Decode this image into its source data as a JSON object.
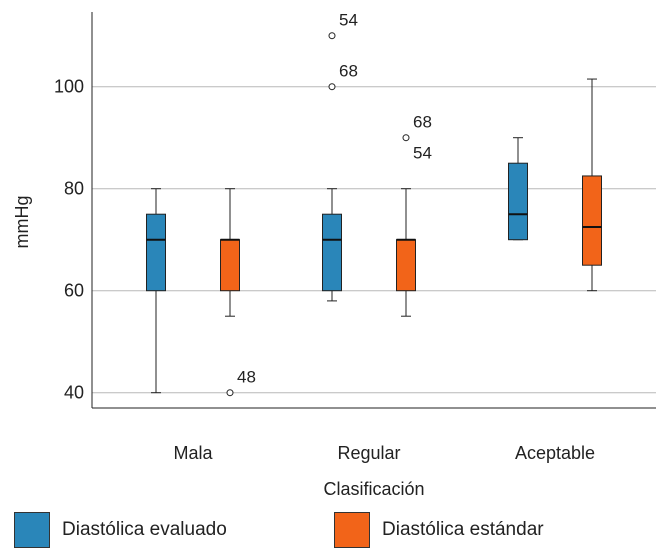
{
  "chart_data": {
    "type": "boxplot",
    "xlabel": "Clasificación",
    "ylabel": "mmHg",
    "ylim": [
      37,
      117
    ],
    "yticks": [
      40,
      60,
      80,
      100
    ],
    "categories": [
      "Mala",
      "Regular",
      "Aceptable"
    ],
    "grid": "horizontal",
    "legend_position": "bottom",
    "series": [
      {
        "name": "Diastólica evaluado",
        "color": "#2a86b9",
        "boxes": [
          {
            "category": "Mala",
            "whisker_low": 40,
            "q1": 60,
            "median": 70,
            "q3": 75,
            "whisker_high": 80,
            "outliers": []
          },
          {
            "category": "Regular",
            "whisker_low": 58,
            "q1": 60,
            "median": 70,
            "q3": 75,
            "whisker_high": 80,
            "outliers": [
              {
                "value": 110,
                "label": "54"
              },
              {
                "value": 100,
                "label": "68"
              }
            ]
          },
          {
            "category": "Aceptable",
            "whisker_low": 70,
            "q1": 70,
            "median": 75,
            "q3": 85,
            "whisker_high": 90,
            "outliers": []
          }
        ]
      },
      {
        "name": "Diastólica estándar",
        "color": "#f26419",
        "boxes": [
          {
            "category": "Mala",
            "whisker_low": 55,
            "q1": 60,
            "median": 70,
            "q3": 70,
            "whisker_high": 80,
            "outliers": [
              {
                "value": 40,
                "label": "48"
              }
            ]
          },
          {
            "category": "Regular",
            "whisker_low": 55,
            "q1": 60,
            "median": 70,
            "q3": 70,
            "whisker_high": 80,
            "outliers": [
              {
                "value": 90,
                "label": "68",
                "label2": "54"
              }
            ]
          },
          {
            "category": "Aceptable",
            "whisker_low": 60,
            "q1": 65,
            "median": 72.5,
            "q3": 82.5,
            "whisker_high": 101.5,
            "outliers": []
          }
        ]
      }
    ]
  }
}
